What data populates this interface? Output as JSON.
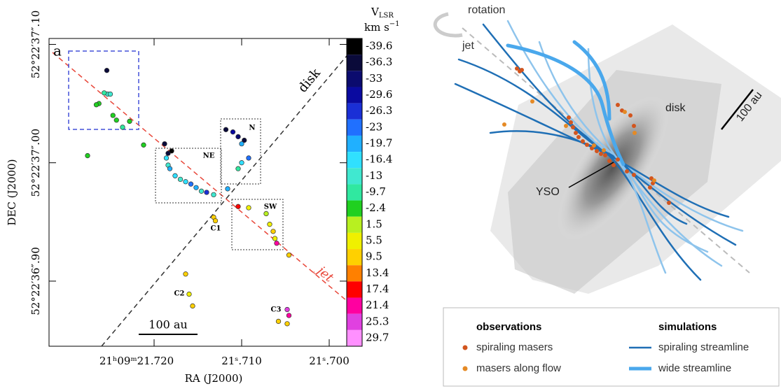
{
  "chart_data": {
    "type": "scatter",
    "x_label": "RA (J2000)",
    "y_label": "DEC (J2000)",
    "xlim": [
      21.732,
      21.698
    ],
    "ylim": [
      36.845,
      37.105
    ],
    "xticks": [
      {
        "value": 21.72,
        "label": "21ʰ09ᵐ21.720"
      },
      {
        "value": 21.71,
        "label": "21ˢ.710"
      },
      {
        "value": 21.7,
        "label": "21ˢ.700"
      }
    ],
    "yticks": [
      {
        "value": 37.1,
        "label": "52°22′37″.10"
      },
      {
        "value": 37.0,
        "label": "52°22′37″.00"
      },
      {
        "value": 36.9,
        "label": "52°22′36″.90"
      }
    ],
    "x": [
      21.7254,
      21.7253,
      21.7257,
      21.725,
      21.7263,
      21.7266,
      21.7247,
      21.7243,
      21.7236,
      21.7276,
      21.7228,
      21.7212,
      21.7188,
      21.7184,
      21.718,
      21.7186,
      21.7184,
      21.7182,
      21.7176,
      21.717,
      21.7164,
      21.7158,
      21.7152,
      21.7146,
      21.714,
      21.7132,
      21.7116,
      21.7118,
      21.711,
      21.7104,
      21.7097,
      21.71,
      21.7092,
      21.71,
      21.7104,
      21.7104,
      21.7092,
      21.7072,
      21.7068,
      21.7064,
      21.7062,
      21.706,
      21.7046,
      21.7132,
      21.713,
      21.7164,
      21.716,
      21.7156,
      21.7048,
      21.7046,
      21.7058,
      21.7048
    ],
    "y": [
      37.078,
      37.058,
      37.059,
      37.058,
      37.05,
      37.049,
      37.04,
      37.036,
      37.03,
      37.006,
      37.035,
      37.015,
      37.016,
      37.008,
      37.01,
      37.004,
      36.998,
      36.995,
      36.989,
      36.986,
      36.984,
      36.982,
      36.979,
      36.976,
      36.975,
      36.973,
      36.978,
      37.028,
      37.026,
      37.022,
      37.019,
      37.016,
      37.004,
      37.0,
      36.995,
      36.963,
      36.962,
      36.957,
      36.948,
      36.942,
      36.936,
      36.932,
      36.922,
      36.954,
      36.951,
      36.906,
      36.889,
      36.879,
      36.876,
      36.871,
      36.866,
      36.864
    ],
    "v": [
      -36,
      -12,
      -10,
      -13,
      -4,
      -4,
      -5,
      -6,
      -8,
      -4,
      -3,
      -5,
      -36,
      -36,
      -39,
      -15,
      -12,
      -20,
      -16,
      -13,
      -18,
      -22,
      -19,
      -12,
      -25,
      -14,
      -20,
      -36,
      -30,
      -33,
      -36,
      -20,
      -22,
      -16,
      -10,
      16,
      5,
      3,
      6,
      8,
      5,
      23,
      10,
      11,
      8,
      9,
      5,
      8,
      25,
      22,
      8,
      10
    ],
    "colorbar": {
      "symbol": "V",
      "subscript": "LSR",
      "unit": "km s",
      "unit_exponent": "−1",
      "values": [
        -39.6,
        -36.3,
        -33,
        -29.6,
        -26.3,
        -23,
        -19.7,
        -16.4,
        -13,
        -9.7,
        -2.4,
        1.5,
        5.5,
        9.5,
        13.4,
        17.4,
        21.4,
        25.3,
        29.7
      ],
      "colors": [
        "#000000",
        "#0a0a3a",
        "#0b0b6e",
        "#0a0aa0",
        "#1a2fd6",
        "#2070ff",
        "#20b0ff",
        "#30e0ff",
        "#40e8d0",
        "#30e8a0",
        "#20d020",
        "#b8f020",
        "#f0f000",
        "#ffd000",
        "#ff8000",
        "#ff0000",
        "#ff00a0",
        "#e040e0",
        "#ff90ff"
      ]
    },
    "annotations": {
      "panel": "a",
      "disk": "disk",
      "jet": "jet",
      "regions": [
        "NE",
        "N",
        "SW",
        "C1",
        "C2",
        "C3"
      ],
      "scale_bar": "100 au"
    }
  },
  "diagram": {
    "labels": {
      "rotation": "rotation",
      "jet": "jet",
      "disk": "disk",
      "scale_bar": "100 au",
      "yso": "YSO"
    },
    "legend": {
      "observations_title": "observations",
      "observations": [
        "spiraling masers",
        "masers along flow"
      ],
      "simulations_title": "simulations",
      "simulations": [
        "spiraling streamline",
        "wide streamline"
      ]
    }
  }
}
